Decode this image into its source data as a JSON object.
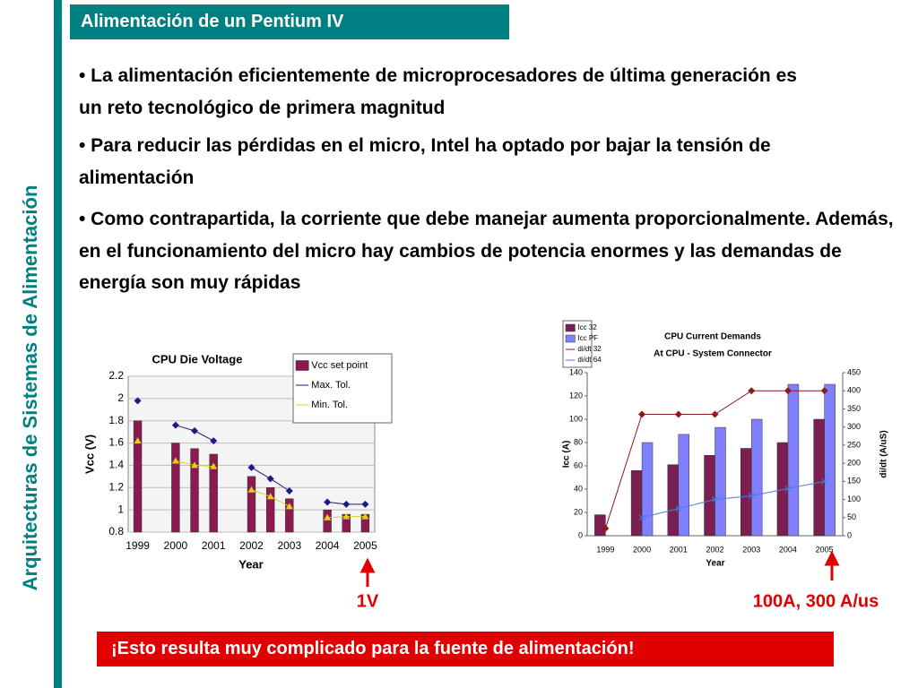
{
  "header": {
    "title": "Alimentación de un Pentium IV"
  },
  "sidebar": {
    "title": "Arquitecturas de Sistemas de Alimentación"
  },
  "bullets": [
    "• La alimentación eficientemente de microprocesadores de última generación es un reto tecnológico de primera magnitud",
    "• Para reducir las pérdidas en el micro, Intel ha optado por bajar la tensión de alimentación",
    "• Como contrapartida, la corriente que debe manejar aumenta proporcionalmente. Además, en el funcionamiento del micro hay cambios de potencia enormes y las demandas de energía son muy rápidas"
  ],
  "annotations": [
    "1V",
    "100A, 300 A/us"
  ],
  "footer": "¡Esto resulta muy complicado para la fuente de alimentación!",
  "chart_data": [
    {
      "type": "combo",
      "title": "CPU Die Voltage",
      "xlabel": "Year",
      "ylabel": "Vcc (V)",
      "categories": [
        "1999",
        null,
        "2000",
        null,
        "2001",
        null,
        "2002",
        null,
        "2003",
        null,
        "2004",
        null,
        "2005"
      ],
      "ylim": [
        0.8,
        2.2
      ],
      "yticks": [
        0.8,
        1,
        1.2,
        1.4,
        1.6,
        1.8,
        2,
        2.2
      ],
      "grid": true,
      "series": [
        {
          "name": "Vcc set point",
          "kind": "bar",
          "color": "#8b1a50",
          "values": [
            1.8,
            null,
            1.6,
            1.55,
            1.5,
            null,
            1.3,
            1.2,
            1.1,
            null,
            1.0,
            0.96,
            0.96
          ]
        },
        {
          "name": "Max. Tol.",
          "kind": "line",
          "marker": "diamond",
          "color": "#1a1a80",
          "values": [
            1.98,
            null,
            1.76,
            1.71,
            1.62,
            null,
            1.38,
            1.28,
            1.17,
            null,
            1.07,
            1.05,
            1.05
          ]
        },
        {
          "name": "Min. Tol.",
          "kind": "line",
          "marker": "triangle",
          "color": "#e0d020",
          "values": [
            1.62,
            null,
            1.44,
            1.4,
            1.39,
            null,
            1.18,
            1.12,
            1.03,
            null,
            0.93,
            0.94,
            0.94
          ]
        }
      ]
    },
    {
      "type": "combo",
      "title": "CPU Current Demands",
      "subtitle": "At CPU - System Connector",
      "xlabel": "Year",
      "ylabel": "Icc (A)",
      "y2label": "di/dt (A/uS)",
      "categories": [
        "1999",
        "2000",
        "2001",
        "2002",
        "2003",
        "2004",
        "2005"
      ],
      "ylim": [
        0,
        140
      ],
      "yticks": [
        0,
        20,
        40,
        60,
        80,
        100,
        120,
        140
      ],
      "y2lim": [
        0,
        450
      ],
      "y2ticks": [
        0,
        50,
        100,
        150,
        200,
        250,
        300,
        350,
        400,
        450
      ],
      "grid": false,
      "series": [
        {
          "name": "Icc 32",
          "kind": "bar",
          "color": "#7a1f50",
          "values": [
            18,
            56,
            61,
            69,
            75,
            80,
            100
          ]
        },
        {
          "name": "Icc PF",
          "kind": "bar",
          "color": "#8080ff",
          "values": [
            null,
            80,
            87,
            93,
            100,
            130,
            130
          ]
        },
        {
          "name": "di/dt 32",
          "kind": "line",
          "marker": "diamond",
          "color": "#8b1a1a",
          "axis": "y2",
          "values": [
            20,
            335,
            335,
            335,
            400,
            400,
            400
          ]
        },
        {
          "name": "di/dt 64",
          "kind": "line",
          "marker": "cross",
          "color": "#4a7ee0",
          "axis": "y2",
          "values": [
            null,
            50,
            75,
            100,
            110,
            130,
            150
          ]
        }
      ]
    }
  ]
}
